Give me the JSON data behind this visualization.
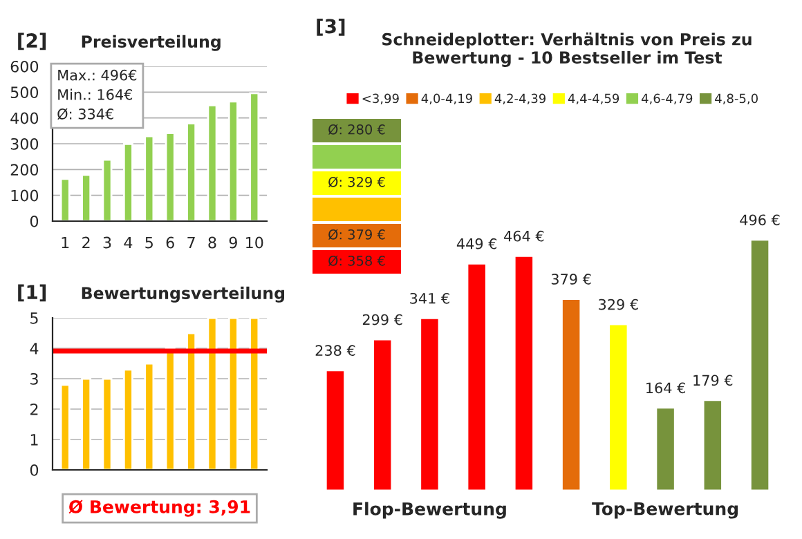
{
  "chart_data": [
    {
      "type": "bar",
      "title": "Preisverteilung",
      "annotations": [
        "[2]",
        "Max.: 496€",
        "Min.: 164€",
        "Ø: 334€"
      ],
      "categories": [
        "1",
        "2",
        "3",
        "4",
        "5",
        "6",
        "7",
        "8",
        "9",
        "10"
      ],
      "values": [
        164,
        179,
        238,
        299,
        329,
        341,
        379,
        449,
        464,
        496
      ],
      "color": "#92d050",
      "ylim": [
        0,
        600
      ],
      "yticks": [
        0,
        100,
        200,
        300,
        400,
        500,
        600
      ],
      "grid": "y"
    },
    {
      "type": "bar",
      "title": "Bewertungsverteilung",
      "annotations": [
        "[1]"
      ],
      "categories": [
        null,
        null,
        null,
        null,
        null,
        null,
        null,
        null,
        null,
        null
      ],
      "values": [
        2.8,
        3.0,
        3.0,
        3.3,
        3.5,
        4.0,
        4.5,
        5.0,
        5.0,
        5.0
      ],
      "color": "#ffc000",
      "ylim": [
        0,
        5
      ],
      "yticks": [
        0,
        1,
        2,
        3,
        4,
        5
      ],
      "grid": "y",
      "ref_lines": [
        {
          "axis": "y",
          "value": 3.91,
          "label": "Ø Bewertung: 3,91",
          "color": "#ff0000"
        }
      ]
    },
    {
      "type": "bar",
      "title": "Schneideplotter: Verhältnis von Preis zu Bewertung - 10 Bestseller im Test",
      "annotations": [
        "[3]",
        "Ø: 280 €",
        "Ø: 329 €",
        "Ø: 379 €",
        "Ø: 358 €",
        "Flop-Bewertung",
        "Top-Bewertung"
      ],
      "categories": [
        null,
        null,
        null,
        null,
        null,
        null,
        null,
        null,
        null,
        null
      ],
      "legend": "top",
      "tick_labels": false,
      "stacked": true,
      "series": [
        {
          "name": "<3,99",
          "color": "#ff0000",
          "values": [
            238,
            299,
            341,
            449,
            464,
            null,
            null,
            null,
            null,
            null
          ],
          "value_labels": [
            "238 €",
            "299 €",
            "341 €",
            "449 €",
            "464 €",
            null,
            null,
            null,
            null,
            null
          ]
        },
        {
          "name": "4,0-4,19",
          "color": "#e46c0a",
          "values": [
            null,
            null,
            null,
            null,
            null,
            379,
            null,
            null,
            null,
            null
          ],
          "value_labels": [
            null,
            null,
            null,
            null,
            null,
            "379 €",
            null,
            null,
            null,
            null
          ]
        },
        {
          "name": "4,2-4,39",
          "color": "#ffc000",
          "values": [
            null,
            null,
            null,
            null,
            null,
            null,
            null,
            null,
            null,
            null
          ]
        },
        {
          "name": "4,4-4,59",
          "color": "#ffff00",
          "values": [
            null,
            null,
            null,
            null,
            null,
            null,
            329,
            null,
            null,
            null
          ],
          "value_labels": [
            null,
            null,
            null,
            null,
            null,
            null,
            "329 €",
            null,
            null,
            null
          ]
        },
        {
          "name": "4,6-4,79",
          "color": "#92d050",
          "values": [
            null,
            null,
            null,
            null,
            null,
            null,
            null,
            null,
            null,
            null
          ]
        },
        {
          "name": "4,8-5,0",
          "color": "#77933c",
          "values": [
            null,
            null,
            null,
            null,
            null,
            null,
            null,
            164,
            179,
            496
          ],
          "value_labels": [
            null,
            null,
            null,
            null,
            null,
            null,
            null,
            "164 €",
            "179 €",
            "496 €"
          ]
        }
      ]
    }
  ]
}
